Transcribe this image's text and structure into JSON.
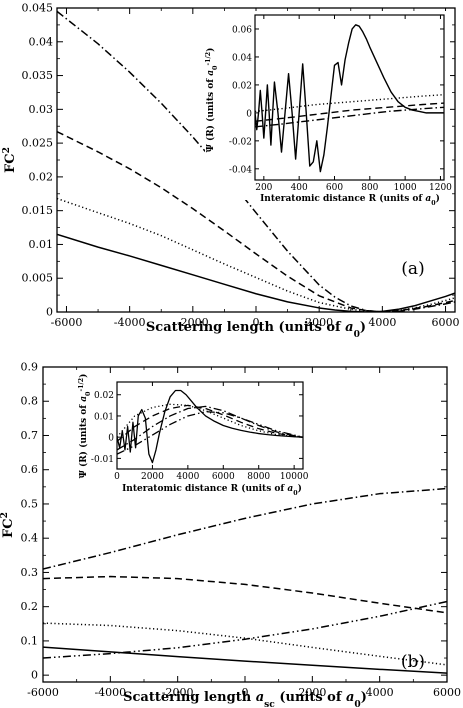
{
  "chart_data": [
    {
      "type": "line",
      "panel_label": "(a)",
      "xlabel": "Scattering length (units of a₀)",
      "ylabel": "FC²",
      "xlim": [
        -6300,
        6300
      ],
      "ylim": [
        0,
        0.045
      ],
      "xticks": [
        -6000,
        -4000,
        -2000,
        0,
        2000,
        4000,
        6000
      ],
      "yticks": [
        0,
        0.005,
        0.01,
        0.015,
        0.02,
        0.025,
        0.03,
        0.035,
        0.04,
        0.045
      ],
      "xtick_labels": [
        "-6000",
        "-4000",
        "-2000",
        "0",
        "2000",
        "4000",
        "6000"
      ],
      "ytick_labels": [
        "0",
        "0.005",
        "0.01",
        "0.015",
        "0.02",
        "0.025",
        "0.03",
        "0.035",
        "0.04",
        "0.045"
      ],
      "series": [
        {
          "style": "solid",
          "x": [
            -6300,
            -5000,
            -4000,
            -3000,
            -2000,
            -1000,
            0,
            1000,
            2000,
            2500,
            3000,
            3500,
            4000,
            4500,
            5000,
            5500,
            6000,
            6300
          ],
          "y": [
            0.0115,
            0.0096,
            0.0083,
            0.0069,
            0.0055,
            0.0041,
            0.0027,
            0.0015,
            0.0006,
            0.0003,
            0.0001,
            0.0,
            0.0001,
            0.0004,
            0.0009,
            0.0016,
            0.0023,
            0.0028
          ]
        },
        {
          "style": "dotted",
          "x": [
            -6300,
            -5000,
            -4000,
            -3000,
            -2000,
            -1000,
            0,
            1000,
            2000,
            3000,
            3500,
            4000,
            4500,
            5000,
            5500,
            6000,
            6300
          ],
          "y": [
            0.0168,
            0.0147,
            0.0131,
            0.0113,
            0.0092,
            0.0071,
            0.0051,
            0.0031,
            0.0014,
            0.0004,
            0.0001,
            0.0,
            0.0002,
            0.0006,
            0.0011,
            0.0017,
            0.0021
          ]
        },
        {
          "style": "dashed",
          "x": [
            -6300,
            -5000,
            -4000,
            -3000,
            -2000,
            -1000,
            0,
            1000,
            2000,
            3000,
            3500,
            4000,
            4500,
            5000,
            5500,
            6000,
            6300
          ],
          "y": [
            0.0267,
            0.0237,
            0.0212,
            0.0184,
            0.0153,
            0.012,
            0.0086,
            0.0053,
            0.0024,
            0.0006,
            0.0002,
            0.0,
            0.0002,
            0.0005,
            0.0009,
            0.0014,
            0.0017
          ]
        },
        {
          "style": "dash-dot",
          "x": [
            -6300,
            -5000,
            -4000,
            -3000,
            -2000,
            -1000,
            0,
            1000,
            2000,
            2500,
            3000,
            3500,
            4000,
            4500,
            5000,
            5500,
            6000,
            6300
          ],
          "y": [
            0.0445,
            0.0397,
            0.0355,
            0.0309,
            0.0259,
            0.0205,
            0.0147,
            0.009,
            0.004,
            0.0022,
            0.0009,
            0.0002,
            0.0,
            0.0001,
            0.0004,
            0.0008,
            0.0012,
            0.0015
          ]
        }
      ],
      "inset": {
        "xlabel": "Interatomic distance R (units of a₀)",
        "ylabel": "Ψ (R)  (units of a₀⁻¹′²)",
        "xlim": [
          150,
          1220
        ],
        "ylim": [
          -0.048,
          0.07
        ],
        "xticks": [
          200,
          400,
          600,
          800,
          1000,
          1200
        ],
        "yticks": [
          -0.04,
          -0.02,
          0,
          0.02,
          0.04,
          0.06
        ],
        "xtick_labels": [
          "200",
          "400",
          "600",
          "800",
          "1000",
          "1200"
        ],
        "ytick_labels": [
          "-0.04",
          "-0.02",
          "0",
          "0.02",
          "0.04",
          "0.06"
        ],
        "series": [
          {
            "style": "solid",
            "x": [
              150,
              160,
              170,
              180,
              190,
              200,
              210,
              220,
              230,
              240,
              250,
              260,
              280,
              300,
              320,
              340,
              360,
              380,
              400,
              420,
              440,
              460,
              480,
              500,
              520,
              540,
              560,
              580,
              600,
              620,
              640,
              660,
              680,
              700,
              720,
              740,
              760,
              780,
              800,
              840,
              880,
              920,
              960,
              1000,
              1040,
              1080,
              1120,
              1160,
              1200,
              1220
            ],
            "y": [
              0.0,
              -0.012,
              0.0,
              0.016,
              0.0,
              -0.018,
              0.0,
              0.02,
              0.0,
              -0.023,
              0.0,
              0.022,
              0.0,
              -0.028,
              0.0,
              0.028,
              0.0,
              -0.033,
              0.0,
              0.035,
              0.0,
              -0.038,
              -0.035,
              -0.02,
              -0.042,
              -0.03,
              -0.01,
              0.012,
              0.034,
              0.036,
              0.02,
              0.038,
              0.05,
              0.06,
              0.063,
              0.062,
              0.058,
              0.053,
              0.047,
              0.036,
              0.025,
              0.015,
              0.008,
              0.004,
              0.002,
              0.001,
              0.0,
              0.0,
              0.0,
              0.0
            ]
          },
          {
            "style": "dotted",
            "x": [
              150,
              300,
              500,
              700,
              900,
              1100,
              1220
            ],
            "y": [
              0.001,
              0.003,
              0.006,
              0.008,
              0.01,
              0.012,
              0.013
            ]
          },
          {
            "style": "dashed",
            "x": [
              150,
              300,
              500,
              700,
              900,
              1100,
              1220
            ],
            "y": [
              -0.006,
              -0.004,
              -0.001,
              0.002,
              0.004,
              0.006,
              0.007
            ]
          },
          {
            "style": "dash-dot",
            "x": [
              150,
              300,
              500,
              700,
              900,
              1100,
              1220
            ],
            "y": [
              -0.01,
              -0.008,
              -0.005,
              -0.002,
              0.001,
              0.003,
              0.004
            ]
          }
        ]
      }
    },
    {
      "type": "line",
      "panel_label": "(b)",
      "xlabel": "Scattering length  a_sc  (units of a₀)",
      "ylabel": "FC²",
      "xlim": [
        -6000,
        6000
      ],
      "ylim": [
        -0.02,
        0.9
      ],
      "xticks": [
        -6000,
        -4000,
        -2000,
        0,
        2000,
        4000,
        6000
      ],
      "yticks": [
        0,
        0.1,
        0.2,
        0.3,
        0.4,
        0.5,
        0.6,
        0.7,
        0.8,
        0.9
      ],
      "xtick_labels": [
        "-6000",
        "-4000",
        "-2000",
        "0",
        "2000",
        "4000",
        "6000"
      ],
      "ytick_labels": [
        "0",
        "0.1",
        "0.2",
        "0.3",
        "0.4",
        "0.5",
        "0.6",
        "0.7",
        "0.8",
        "0.9"
      ],
      "series": [
        {
          "style": "solid",
          "x": [
            -6000,
            -4000,
            -2000,
            0,
            2000,
            4000,
            6000
          ],
          "y": [
            0.082,
            0.068,
            0.054,
            0.041,
            0.029,
            0.017,
            0.006
          ]
        },
        {
          "style": "dotted",
          "x": [
            -6000,
            -4000,
            -2000,
            0,
            2000,
            4000,
            6000
          ],
          "y": [
            0.152,
            0.145,
            0.13,
            0.108,
            0.081,
            0.055,
            0.03
          ]
        },
        {
          "style": "dashed",
          "x": [
            -6000,
            -4000,
            -2000,
            0,
            2000,
            4000,
            6000
          ],
          "y": [
            0.282,
            0.288,
            0.282,
            0.265,
            0.24,
            0.21,
            0.182
          ]
        },
        {
          "style": "dash-dot",
          "x": [
            -6000,
            -4000,
            -2000,
            0,
            2000,
            4000,
            6000
          ],
          "y": [
            0.31,
            0.358,
            0.41,
            0.458,
            0.5,
            0.53,
            0.545
          ]
        },
        {
          "style": "dash-dot-dot",
          "x": [
            -6000,
            -4000,
            -2000,
            0,
            2000,
            4000,
            6000
          ],
          "y": [
            0.05,
            0.063,
            0.08,
            0.105,
            0.135,
            0.172,
            0.215
          ]
        }
      ],
      "inset": {
        "xlabel": "Interatomic distance R (units of a₀)",
        "ylabel": "Ψ (R)  (units of a₀⁻¹′²)",
        "xlim": [
          0,
          10500
        ],
        "ylim": [
          -0.015,
          0.026
        ],
        "xticks": [
          0,
          2000,
          4000,
          6000,
          8000,
          10000
        ],
        "yticks": [
          -0.01,
          0,
          0.01,
          0.02
        ],
        "xtick_labels": [
          "0",
          "2000",
          "4000",
          "6000",
          "8000",
          "10000"
        ],
        "ytick_labels": [
          "-0.01",
          "0",
          "0.01",
          "0.02"
        ],
        "series": [
          {
            "style": "solid",
            "x": [
              0,
              150,
              300,
              450,
              600,
              750,
              900,
              1050,
              1200,
              1400,
              1600,
              1800,
              2000,
              2200,
              2400,
              2700,
              3000,
              3300,
              3600,
              3900,
              4200,
              4500,
              5000,
              5500,
              6000,
              6500,
              7000,
              7500,
              8000,
              8500,
              9000,
              9500,
              10000,
              10500
            ],
            "y": [
              0.0,
              -0.005,
              0.003,
              -0.006,
              0.005,
              -0.007,
              0.007,
              -0.005,
              0.01,
              0.013,
              0.009,
              -0.008,
              -0.012,
              -0.006,
              0.002,
              0.012,
              0.019,
              0.022,
              0.022,
              0.02,
              0.017,
              0.014,
              0.01,
              0.0075,
              0.0055,
              0.0042,
              0.0032,
              0.0024,
              0.0017,
              0.0012,
              0.0008,
              0.0005,
              0.0002,
              0.0
            ]
          },
          {
            "style": "dotted",
            "x": [
              0,
              1000,
              2000,
              3000,
              4000,
              5000,
              6000,
              7000,
              8000,
              9000,
              10000,
              10500
            ],
            "y": [
              0.0,
              0.01,
              0.014,
              0.0155,
              0.015,
              0.0125,
              0.009,
              0.0055,
              0.003,
              0.0012,
              0.0003,
              0.0
            ]
          },
          {
            "style": "dashed",
            "x": [
              0,
              1000,
              2000,
              3000,
              4000,
              5000,
              6000,
              7000,
              8000,
              9000,
              10000,
              10500
            ],
            "y": [
              -0.002,
              0.005,
              0.01,
              0.0135,
              0.015,
              0.0135,
              0.0105,
              0.007,
              0.004,
              0.0018,
              0.0005,
              0.0
            ]
          },
          {
            "style": "dash-dot",
            "x": [
              0,
              1000,
              2000,
              3000,
              4000,
              5000,
              6000,
              7000,
              8000,
              9000,
              10000,
              10500
            ],
            "y": [
              -0.006,
              -0.001,
              0.005,
              0.01,
              0.0135,
              0.0145,
              0.0125,
              0.009,
              0.0055,
              0.0025,
              0.0007,
              0.0
            ]
          },
          {
            "style": "dash-dot-dot",
            "x": [
              0,
              1000,
              2000,
              3000,
              4000,
              5000,
              6000,
              7000,
              8000,
              9000,
              10000,
              10500
            ],
            "y": [
              -0.008,
              -0.004,
              0.001,
              0.006,
              0.01,
              0.012,
              0.0115,
              0.009,
              0.006,
              0.003,
              0.001,
              0.0
            ]
          }
        ]
      }
    }
  ]
}
